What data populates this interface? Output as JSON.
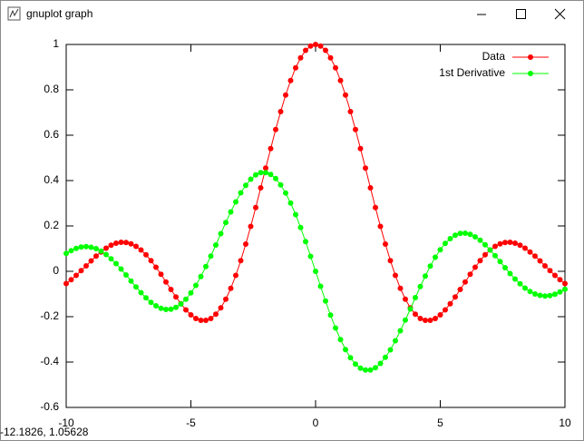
{
  "window": {
    "title": "gnuplot graph"
  },
  "status_text": "-12.1826, 1.05628",
  "chart_data": {
    "type": "line",
    "x": [
      -10,
      -9.8,
      -9.6,
      -9.4,
      -9.2,
      -9,
      -8.8,
      -8.6,
      -8.4,
      -8.2,
      -8,
      -7.8,
      -7.6,
      -7.4,
      -7.2,
      -7,
      -6.8,
      -6.6,
      -6.4,
      -6.2,
      -6,
      -5.8,
      -5.6,
      -5.4,
      -5.2,
      -5,
      -4.8,
      -4.6,
      -4.4,
      -4.2,
      -4,
      -3.8,
      -3.6,
      -3.4,
      -3.2,
      -3,
      -2.8,
      -2.6,
      -2.4,
      -2.2,
      -2,
      -1.8,
      -1.6,
      -1.4,
      -1.2,
      -1,
      -0.8,
      -0.6,
      -0.4,
      -0.2,
      0,
      0.2,
      0.4,
      0.6,
      0.8,
      1,
      1.2,
      1.4,
      1.6,
      1.8,
      2,
      2.2,
      2.4,
      2.6,
      2.8,
      3,
      3.2,
      3.4,
      3.6,
      3.8,
      4,
      4.2,
      4.4,
      4.6,
      4.8,
      5,
      5.2,
      5.4,
      5.6,
      5.8,
      6,
      6.2,
      6.4,
      6.6,
      6.8,
      7,
      7.2,
      7.4,
      7.6,
      7.8,
      8,
      8.2,
      8.4,
      8.6,
      8.8,
      9,
      9.2,
      9.4,
      9.6,
      9.8,
      10
    ],
    "series": [
      {
        "name": "Data",
        "color": "#ff0000",
        "values": [
          -0.054,
          -0.037,
          -0.018,
          0.003,
          0.024,
          0.046,
          0.067,
          0.085,
          0.102,
          0.115,
          0.124,
          0.128,
          0.127,
          0.121,
          0.11,
          0.094,
          0.073,
          0.047,
          0.018,
          -0.013,
          -0.047,
          -0.08,
          -0.113,
          -0.143,
          -0.17,
          -0.192,
          -0.208,
          -0.216,
          -0.216,
          -0.208,
          -0.189,
          -0.161,
          -0.123,
          -0.075,
          -0.018,
          0.047,
          0.12,
          0.198,
          0.281,
          0.368,
          0.455,
          0.541,
          0.625,
          0.704,
          0.777,
          0.841,
          0.897,
          0.941,
          0.974,
          0.993,
          1,
          0.993,
          0.974,
          0.941,
          0.897,
          0.841,
          0.777,
          0.704,
          0.625,
          0.541,
          0.455,
          0.368,
          0.281,
          0.198,
          0.12,
          0.047,
          -0.018,
          -0.075,
          -0.123,
          -0.161,
          -0.189,
          -0.208,
          -0.216,
          -0.216,
          -0.208,
          -0.192,
          -0.17,
          -0.143,
          -0.113,
          -0.08,
          -0.047,
          -0.013,
          0.018,
          0.047,
          0.073,
          0.094,
          0.11,
          0.121,
          0.127,
          0.128,
          0.124,
          0.115,
          0.102,
          0.085,
          0.067,
          0.046,
          0.024,
          0.003,
          -0.018,
          -0.037,
          -0.054
        ]
      },
      {
        "name": "1st Derivative",
        "color": "#00ff00",
        "values": [
          0.079,
          0.091,
          0.101,
          0.107,
          0.109,
          0.106,
          0.1,
          0.089,
          0.074,
          0.055,
          0.034,
          0.01,
          -0.016,
          -0.043,
          -0.069,
          -0.094,
          -0.117,
          -0.137,
          -0.152,
          -0.163,
          -0.168,
          -0.167,
          -0.159,
          -0.144,
          -0.123,
          -0.095,
          -0.062,
          -0.023,
          0.021,
          0.067,
          0.116,
          0.166,
          0.215,
          0.262,
          0.306,
          0.346,
          0.379,
          0.406,
          0.425,
          0.435,
          0.435,
          0.427,
          0.409,
          0.381,
          0.345,
          0.301,
          0.25,
          0.193,
          0.131,
          0.066,
          0,
          -0.066,
          -0.131,
          -0.193,
          -0.25,
          -0.301,
          -0.345,
          -0.381,
          -0.409,
          -0.427,
          -0.435,
          -0.435,
          -0.425,
          -0.406,
          -0.379,
          -0.346,
          -0.306,
          -0.262,
          -0.215,
          -0.166,
          -0.116,
          -0.067,
          -0.021,
          0.023,
          0.062,
          0.095,
          0.123,
          0.144,
          0.159,
          0.167,
          0.168,
          0.163,
          0.152,
          0.137,
          0.117,
          0.094,
          0.069,
          0.043,
          0.016,
          -0.01,
          -0.034,
          -0.055,
          -0.074,
          -0.089,
          -0.1,
          -0.106,
          -0.109,
          -0.107,
          -0.101,
          -0.091,
          -0.079
        ]
      }
    ],
    "xlim": [
      -10,
      10
    ],
    "xticks": [
      -10,
      -5,
      0,
      5,
      10
    ],
    "ylim": [
      -0.6,
      1
    ],
    "yticks": [
      -0.6,
      -0.4,
      -0.2,
      0,
      0.2,
      0.4,
      0.6,
      0.8,
      1
    ],
    "grid": false,
    "legend": "top-right",
    "marker": "circle"
  }
}
